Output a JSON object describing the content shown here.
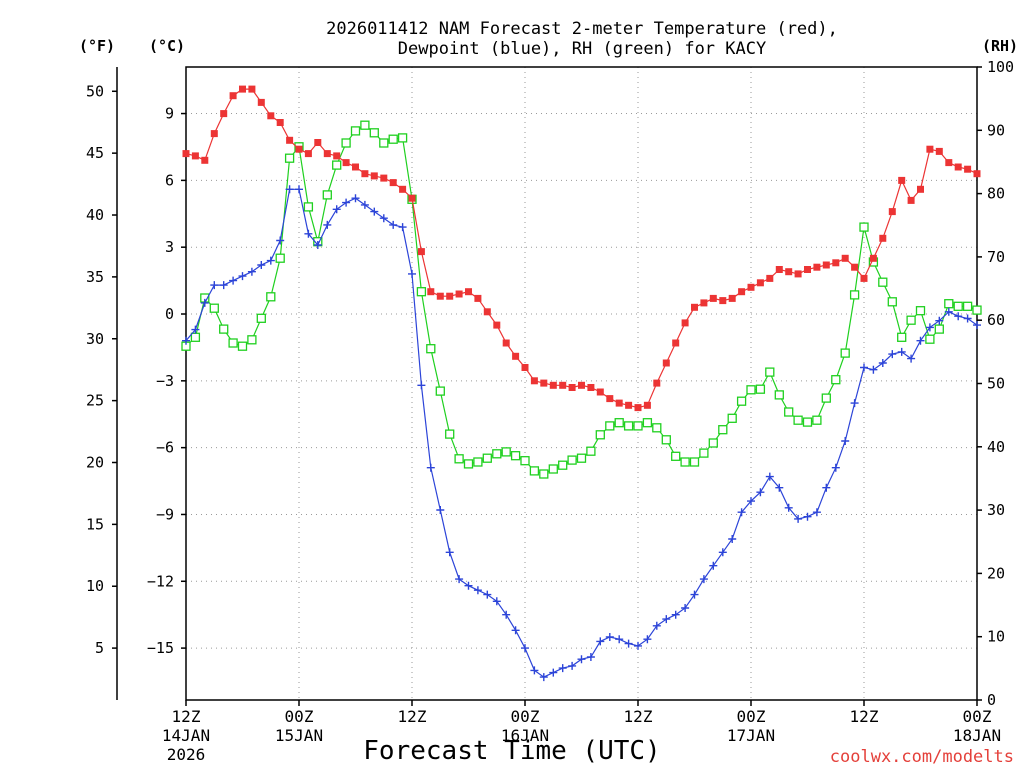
{
  "chart_data": {
    "type": "line",
    "title": [
      "2026011412 NAM Forecast 2-meter Temperature (red),",
      "Dewpoint (blue), RH (green) for KACY"
    ],
    "xlabel": "Forecast Time (UTC)",
    "x_range_hours": [
      0,
      84
    ],
    "hour_step": 1,
    "x_ticks": [
      {
        "hour": 0,
        "labels": [
          "12Z",
          "14JAN",
          "2026"
        ]
      },
      {
        "hour": 12,
        "labels": [
          "00Z",
          "15JAN"
        ]
      },
      {
        "hour": 24,
        "labels": [
          "12Z"
        ]
      },
      {
        "hour": 36,
        "labels": [
          "00Z",
          "16JAN"
        ]
      },
      {
        "hour": 48,
        "labels": [
          "12Z"
        ]
      },
      {
        "hour": 60,
        "labels": [
          "00Z",
          "17JAN"
        ]
      },
      {
        "hour": 72,
        "labels": [
          "12Z"
        ]
      },
      {
        "hour": 84,
        "labels": [
          "00Z",
          "18JAN"
        ]
      }
    ],
    "axes": {
      "temp_f": {
        "label": "(°F)",
        "range": [
          0.806,
          51.962
        ],
        "ticks": [
          50,
          45,
          40,
          35,
          30,
          25,
          20,
          15,
          10,
          5
        ]
      },
      "temp_c": {
        "label": "(°C)",
        "range": [
          -17.33,
          11.09
        ],
        "ticks": [
          9,
          6,
          3,
          0,
          -3,
          -6,
          -9,
          -12,
          -15
        ]
      },
      "rh": {
        "label": "(RH)",
        "range": [
          0,
          100
        ],
        "ticks": [
          100,
          90,
          80,
          70,
          60,
          50,
          40,
          30,
          20,
          10,
          0
        ]
      }
    },
    "grid": true,
    "series": {
      "temperature_c": {
        "color": "#ec3434",
        "values": [
          7.2,
          7.1,
          6.9,
          8.1,
          9.0,
          9.8,
          10.1,
          10.1,
          9.5,
          8.9,
          8.6,
          7.8,
          7.4,
          7.2,
          7.7,
          7.2,
          7.1,
          6.8,
          6.6,
          6.3,
          6.2,
          6.1,
          5.9,
          5.6,
          5.2,
          2.8,
          1.0,
          0.8,
          0.8,
          0.9,
          1.0,
          0.7,
          0.1,
          -0.5,
          -1.3,
          -1.9,
          -2.4,
          -3.0,
          -3.1,
          -3.2,
          -3.2,
          -3.3,
          -3.2,
          -3.3,
          -3.5,
          -3.8,
          -4.0,
          -4.1,
          -4.2,
          -4.1,
          -3.1,
          -2.2,
          -1.3,
          -0.4,
          0.3,
          0.5,
          0.7,
          0.6,
          0.7,
          1.0,
          1.2,
          1.4,
          1.6,
          2.0,
          1.9,
          1.8,
          2.0,
          2.1,
          2.2,
          2.3,
          2.5,
          2.1,
          1.6,
          2.5,
          3.4,
          4.6,
          6.0,
          5.1,
          5.6,
          7.4,
          7.3,
          6.8,
          6.6,
          6.5,
          6.3
        ]
      },
      "dewpoint_c": {
        "color": "#2c44d8",
        "values": [
          -1.2,
          -0.7,
          0.5,
          1.3,
          1.3,
          1.5,
          1.7,
          1.9,
          2.2,
          2.4,
          3.3,
          5.6,
          5.6,
          3.6,
          3.1,
          4.0,
          4.7,
          5.0,
          5.2,
          4.9,
          4.6,
          4.3,
          4.0,
          3.9,
          1.8,
          -3.2,
          -6.9,
          -8.8,
          -10.7,
          -11.9,
          -12.2,
          -12.4,
          -12.6,
          -12.9,
          -13.5,
          -14.2,
          -15.0,
          -16.0,
          -16.3,
          -16.1,
          -15.9,
          -15.8,
          -15.5,
          -15.4,
          -14.7,
          -14.5,
          -14.6,
          -14.8,
          -14.9,
          -14.6,
          -14.0,
          -13.7,
          -13.5,
          -13.2,
          -12.6,
          -11.9,
          -11.3,
          -10.7,
          -10.1,
          -8.9,
          -8.4,
          -8.0,
          -7.3,
          -7.8,
          -8.7,
          -9.2,
          -9.1,
          -8.9,
          -7.8,
          -6.9,
          -5.7,
          -4.0,
          -2.4,
          -2.5,
          -2.2,
          -1.8,
          -1.7,
          -2.0,
          -1.2,
          -0.6,
          -0.3,
          0.1,
          -0.1,
          -0.2,
          -0.5
        ]
      },
      "rh_percent": {
        "color": "#1fd01f",
        "values": [
          55.9,
          57.3,
          63.5,
          61.9,
          58.6,
          56.4,
          55.9,
          56.9,
          60.3,
          63.7,
          69.8,
          85.6,
          87.4,
          77.9,
          72.4,
          79.8,
          84.5,
          88.0,
          89.9,
          90.8,
          89.6,
          88.0,
          88.6,
          88.8,
          79.1,
          64.5,
          55.5,
          48.8,
          42.0,
          38.1,
          37.3,
          37.6,
          38.2,
          38.9,
          39.2,
          38.6,
          37.8,
          36.2,
          35.7,
          36.5,
          37.1,
          37.9,
          38.2,
          39.3,
          41.9,
          43.3,
          43.8,
          43.3,
          43.3,
          43.8,
          43.0,
          41.1,
          38.5,
          37.6,
          37.6,
          39.0,
          40.6,
          42.7,
          44.5,
          47.2,
          49.0,
          49.1,
          51.8,
          48.2,
          45.5,
          44.2,
          43.9,
          44.2,
          47.7,
          50.6,
          54.8,
          64.0,
          74.7,
          69.2,
          66.0,
          62.9,
          57.3,
          60.0,
          61.5,
          57.0,
          58.6,
          62.6,
          62.2,
          62.2,
          61.6
        ]
      }
    },
    "credit": {
      "text": "coolwx.com/modelts",
      "color": "#e4403a"
    }
  }
}
